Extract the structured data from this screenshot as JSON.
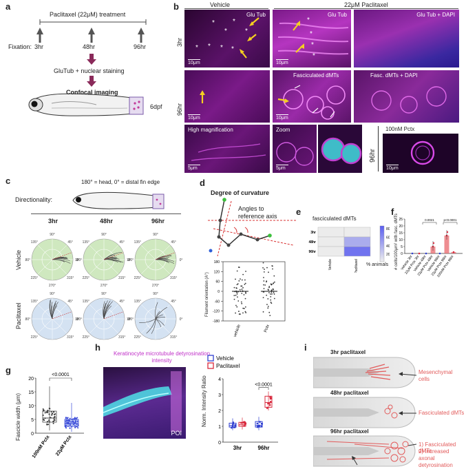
{
  "panel_labels": {
    "a": "a",
    "b": "b",
    "c": "c",
    "d": "d",
    "e": "e",
    "f": "f",
    "g": "g",
    "h": "h",
    "i": "i"
  },
  "panel_a": {
    "treatment": "Paclitaxel (22μM) treatment",
    "fixation_label": "Fixation:",
    "times": [
      "3hr",
      "48hr",
      "96hr"
    ],
    "staining": "GluTub + nuclear staining",
    "imaging": "Confocal imaging",
    "stage": "6dpf"
  },
  "panel_b": {
    "col_vehicle": "Vehicle",
    "col_pctx": "22μM Paclitaxel",
    "row_3hr": "3hr",
    "row_96hr": "96hr",
    "row_96hr_b": "96hr",
    "cap_glutub_a": "Glu Tub",
    "cap_glutub_b": "Glu Tub",
    "cap_glutub_dapi": "Glu Tub + DAPI",
    "cap_fasc": "Fasciculated dMTs",
    "cap_fasc_dapi": "Fasc. dMTs + DAPI",
    "cap_highmag": "High magnification",
    "cap_zoom": "Zoom",
    "cap_100nm": "100nM Pctx",
    "sb_10": "10μm",
    "sb_5": "5μm"
  },
  "panel_c": {
    "legend": "180° = head, 0° = distal fin edge",
    "directionality": "Directionality:",
    "cols": [
      "3hr",
      "48hr",
      "96hr"
    ],
    "rows": [
      "Vehicle",
      "Paclitaxel"
    ],
    "angles": [
      "90°",
      "45°",
      "135°",
      "0°",
      "180°",
      "315°",
      "225°",
      "270°"
    ]
  },
  "panel_d": {
    "title": "Degree of curvature",
    "annotation": "Angles to reference axis",
    "ylabel": "Filament orientation (A°)",
    "yticks": [
      "180",
      "120",
      "60",
      "0",
      "-60",
      "-120",
      "-180"
    ],
    "xticks": [
      "vehicle",
      "Pctx"
    ]
  },
  "panel_e": {
    "title": "fasciculated dMTs",
    "rows": [
      "3hr",
      "48hr",
      "96hr"
    ],
    "cols": [
      "Vehicle",
      "Paclitaxel"
    ],
    "cbar_ticks": [
      "80",
      "60",
      "40",
      "20"
    ],
    "cbar_label": "% animals"
  },
  "panel_f": {
    "ylabel": "# cells/100μm² with fasc. dMTs",
    "yticks": [
      "25",
      "20",
      "15",
      "10",
      "5",
      "0"
    ],
    "xticks": [
      "Vehicle 3hr",
      "22μM Pctx 3hr",
      "Vehicle 48hr",
      "22μM Pctx 48hr",
      "Vehicle 96hr",
      "22μM Pctx 96hr",
      "100nM Pctx 96hr"
    ],
    "p1": "0.0021",
    "p2": "p<0.0001"
  },
  "panel_g": {
    "ylabel": "Fascicle width (μm)",
    "yticks": [
      "20",
      "15",
      "10",
      "5",
      "0"
    ],
    "xticks": [
      "100nM Pctx",
      "22μM Pctx"
    ],
    "pval": "<0.0001"
  },
  "panel_h": {
    "title": "Keratinocyte microtubule detyrosination intensity",
    "poi": "POI",
    "legend": [
      "Vehicle",
      "Paclitaxel"
    ],
    "ylabel": "Norm. Intensity Ratio",
    "yticks": [
      "4",
      "3",
      "2",
      "1",
      "0"
    ],
    "xticks": [
      "3hr",
      "96hr"
    ],
    "pval": "<0.0001"
  },
  "panel_i": {
    "t1": "3hr paclitaxel",
    "l1": "Mesenchymal cells",
    "t2": "48hr paclitaxel",
    "l2": "Fasciculated dMTs",
    "t3": "96hr paclitaxel",
    "l3a": "1) Fasciculated dMTs",
    "l3b": "2) Increased axonal detyrosination"
  },
  "colors": {
    "vehicle": "#2f3fd0",
    "paclitaxel": "#d8283c",
    "magenta": "#d23ad8",
    "cyan": "#3fe0e0",
    "green_polar": "#cfe8bf",
    "blue_polar": "#d4e2f2",
    "heat_hi": "#5a5ef0",
    "red_bar": "#e8676c"
  }
}
